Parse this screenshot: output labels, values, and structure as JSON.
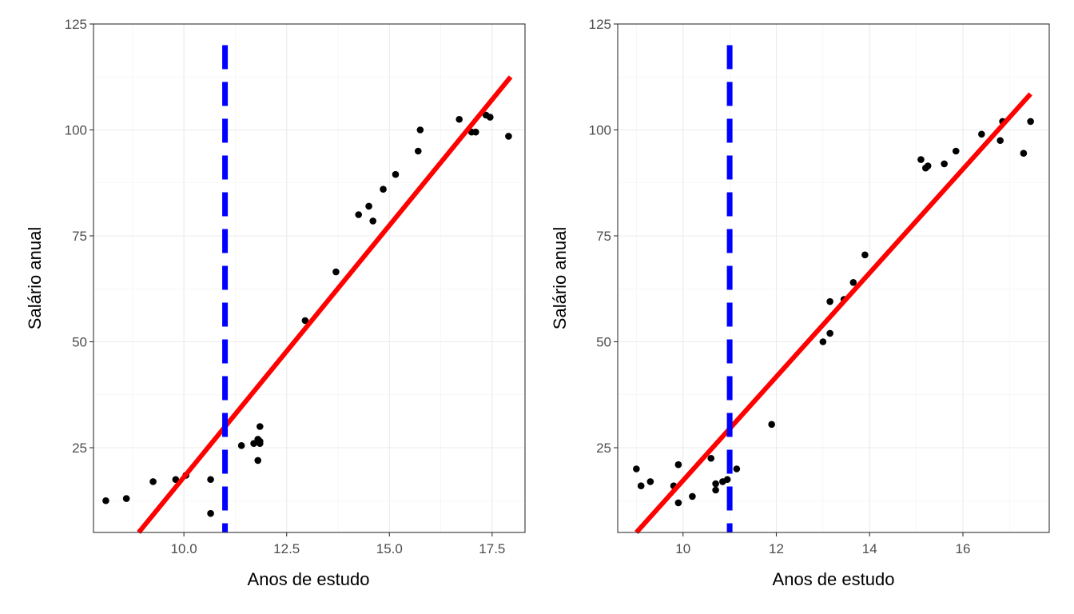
{
  "chart_data": [
    {
      "type": "scatter",
      "xlabel": "Anos de estudo",
      "ylabel": "Salário anual",
      "xlim": [
        7.8,
        18.3
      ],
      "ylim": [
        5,
        125
      ],
      "x_ticks": [
        10.0,
        12.5,
        15.0,
        17.5
      ],
      "x_tick_labels": [
        "10.0",
        "12.5",
        "15.0",
        "17.5"
      ],
      "y_ticks": [
        25,
        50,
        75,
        100,
        125
      ],
      "y_tick_labels": [
        "25",
        "50",
        "75",
        "100",
        "125"
      ],
      "grid": true,
      "points": {
        "x": [
          8.1,
          8.6,
          9.25,
          9.8,
          10.05,
          10.65,
          10.65,
          11.4,
          11.7,
          11.8,
          11.85,
          11.8,
          11.85,
          11.85,
          12.95,
          13.7,
          14.25,
          14.5,
          14.6,
          14.85,
          15.15,
          15.7,
          15.75,
          16.7,
          17.0,
          17.1,
          17.35,
          17.45,
          17.9
        ],
        "y": [
          12.5,
          13.0,
          17.0,
          17.5,
          18.5,
          17.5,
          9.5,
          25.5,
          26.0,
          27.0,
          26.0,
          22.0,
          30.0,
          26.5,
          55.0,
          66.5,
          80.0,
          82.0,
          78.5,
          86.0,
          89.5,
          95.0,
          100.0,
          102.5,
          99.5,
          99.5,
          103.5,
          103.0,
          98.5
        ]
      },
      "regression_line": {
        "x": [
          8.9,
          17.95
        ],
        "y": [
          5.0,
          112.5
        ],
        "color": "#ff0000"
      },
      "cutoff_line": {
        "x": 11.0,
        "y_range": [
          5,
          120
        ],
        "color": "#0000ff",
        "style": "dashed"
      },
      "point_color": "#000000"
    },
    {
      "type": "scatter",
      "xlabel": "Anos de estudo",
      "ylabel": "Salário anual",
      "xlim": [
        8.6,
        17.85
      ],
      "ylim": [
        5,
        125
      ],
      "x_ticks": [
        10,
        12,
        14,
        16
      ],
      "x_tick_labels": [
        "10",
        "12",
        "14",
        "16"
      ],
      "y_ticks": [
        25,
        50,
        75,
        100,
        125
      ],
      "y_tick_labels": [
        "25",
        "50",
        "75",
        "100",
        "125"
      ],
      "grid": true,
      "points": {
        "x": [
          9.0,
          9.1,
          9.3,
          9.8,
          9.9,
          9.9,
          10.2,
          10.6,
          10.7,
          10.7,
          10.85,
          10.95,
          11.15,
          11.9,
          13.0,
          13.15,
          13.15,
          13.45,
          13.65,
          13.9,
          15.1,
          15.2,
          15.25,
          15.6,
          15.85,
          16.4,
          16.8,
          16.85,
          17.3,
          17.45
        ],
        "y": [
          20.0,
          16.0,
          17.0,
          16.0,
          12.0,
          21.0,
          13.5,
          22.5,
          15.0,
          16.5,
          17.0,
          17.5,
          20.0,
          30.5,
          50.0,
          52.0,
          59.5,
          60.0,
          64.0,
          70.5,
          93.0,
          91.0,
          91.5,
          92.0,
          95.0,
          99.0,
          97.5,
          102.0,
          94.5,
          102.0
        ]
      },
      "regression_line": {
        "x": [
          9.0,
          17.45
        ],
        "y": [
          5.0,
          108.5
        ],
        "color": "#ff0000"
      },
      "cutoff_line": {
        "x": 11.0,
        "y_range": [
          5,
          120
        ],
        "color": "#0000ff",
        "style": "dashed"
      },
      "point_color": "#000000"
    }
  ]
}
